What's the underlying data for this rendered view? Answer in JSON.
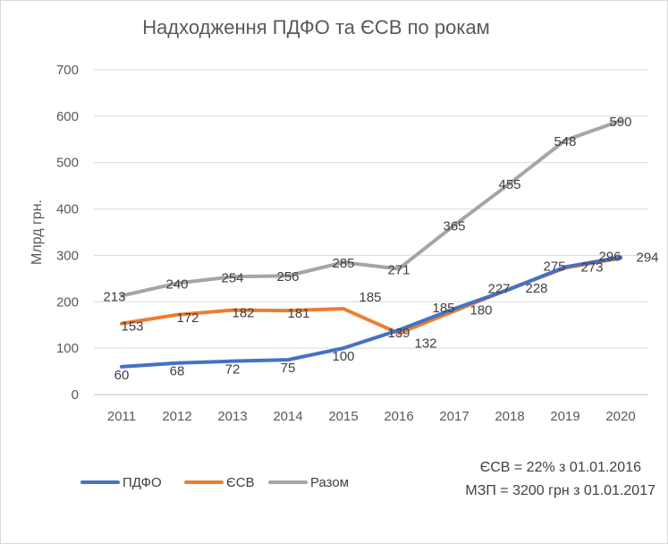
{
  "chart_data": {
    "type": "line",
    "title": "Надходження ПДФО та ЄСВ по рокам",
    "ylabel": "Млрд грн.",
    "xlabel": "",
    "categories": [
      "2011",
      "2012",
      "2013",
      "2014",
      "2015",
      "2016",
      "2017",
      "2018",
      "2019",
      "2020"
    ],
    "ylim": [
      0,
      700
    ],
    "yticks": [
      0,
      100,
      200,
      300,
      400,
      500,
      600,
      700
    ],
    "grid": true,
    "legend_position": "bottom-left",
    "series": [
      {
        "name": "ПДФО",
        "color": "#4472c4",
        "values": [
          60,
          68,
          72,
          75,
          100,
          139,
          185,
          227,
          275,
          296
        ]
      },
      {
        "name": "ЄСВ",
        "color": "#ed7d31",
        "values": [
          153,
          172,
          182,
          181,
          185,
          132,
          180,
          228,
          273,
          294
        ]
      },
      {
        "name": "Разом",
        "color": "#a5a5a5",
        "values": [
          213,
          240,
          254,
          256,
          285,
          271,
          365,
          455,
          548,
          590
        ]
      }
    ],
    "annotations": [
      "ЄСВ = 22% з 01.01.2016",
      "МЗП = 3200 грн з 01.01.2017"
    ]
  }
}
